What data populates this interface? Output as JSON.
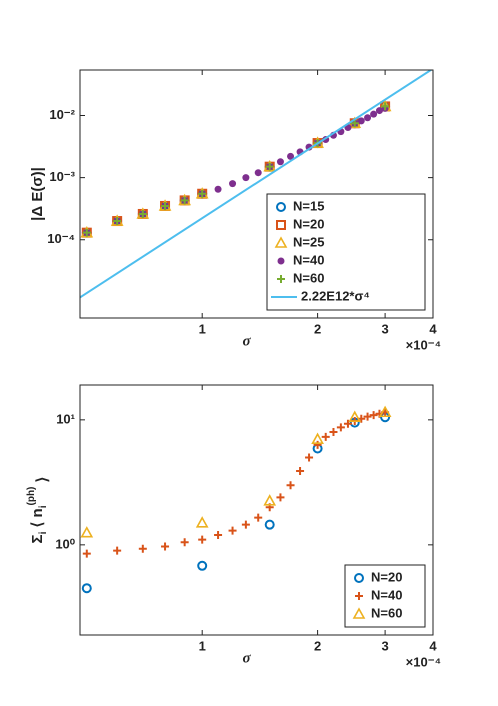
{
  "chart_data": [
    {
      "type": "scatter",
      "x_scale": "log",
      "y_scale": "log",
      "xlim": [
        0.48,
        4
      ],
      "xticks": [
        1,
        2,
        3,
        4
      ],
      "ylim": [
        5.5e-06,
        0.054
      ],
      "yticks": [
        {
          "value": 0.0001,
          "label": "10⁻⁴"
        },
        {
          "value": 0.001,
          "label": "10⁻³"
        },
        {
          "value": 0.01,
          "label": "10⁻²"
        }
      ],
      "x_label": "σ",
      "x_exponent_label": "×10⁻⁴",
      "y_label": "|Δ E(σ)|",
      "legend_loc": "southeast",
      "series": [
        {
          "name": "N=15",
          "marker": "circle",
          "color": "#0072BD",
          "x": [
            0.5,
            0.6,
            0.7,
            0.8,
            0.9,
            1,
            1.5,
            2,
            2.5,
            3
          ],
          "values": [
            0.00013,
            0.0002,
            0.00026,
            0.00035,
            0.00043,
            0.00055,
            0.0015,
            0.0036,
            0.0075,
            0.014
          ]
        },
        {
          "name": "N=20",
          "marker": "square",
          "color": "#D95319",
          "x": [
            0.5,
            0.6,
            0.7,
            0.8,
            0.9,
            1,
            1.5,
            2,
            2.5,
            3
          ],
          "values": [
            0.00013,
            0.0002,
            0.00026,
            0.00035,
            0.00043,
            0.00055,
            0.0015,
            0.0036,
            0.0075,
            0.014
          ]
        },
        {
          "name": "N=25",
          "marker": "triangle",
          "color": "#EDB120",
          "x": [
            0.5,
            0.6,
            0.7,
            0.8,
            0.9,
            1,
            1.5,
            2,
            2.5,
            3
          ],
          "values": [
            0.00013,
            0.0002,
            0.00026,
            0.00035,
            0.00043,
            0.00055,
            0.0015,
            0.0036,
            0.0075,
            0.014
          ]
        },
        {
          "name": "N=40",
          "marker": "dot",
          "color": "#7E2F8E",
          "x": [
            0.5,
            0.6,
            0.7,
            0.8,
            0.9,
            1,
            1.1,
            1.2,
            1.3,
            1.4,
            1.5,
            1.6,
            1.7,
            1.8,
            1.9,
            2,
            2.1,
            2.2,
            2.3,
            2.4,
            2.5,
            2.6,
            2.7,
            2.8,
            2.9,
            3
          ],
          "values": [
            0.00013,
            0.0002,
            0.00026,
            0.00035,
            0.00043,
            0.00055,
            0.00065,
            0.0008,
            0.001,
            0.0012,
            0.0015,
            0.0018,
            0.0022,
            0.0026,
            0.0031,
            0.0036,
            0.0041,
            0.0048,
            0.0055,
            0.0064,
            0.0075,
            0.0082,
            0.0092,
            0.0105,
            0.012,
            0.013
          ]
        },
        {
          "name": "N=60",
          "marker": "plus",
          "color": "#77AC30",
          "x": [
            0.5,
            0.6,
            0.7,
            0.8,
            0.9,
            1,
            1.5,
            2,
            2.5,
            3
          ],
          "values": [
            0.00013,
            0.0002,
            0.00026,
            0.00035,
            0.00043,
            0.00055,
            0.0015,
            0.0036,
            0.0075,
            0.014
          ]
        },
        {
          "name": "2.22E12*σ⁴",
          "marker": "line",
          "color": "#4DBEEE",
          "x": [
            0.48,
            4
          ],
          "values": [
            1.18e-05,
            0.0568
          ]
        }
      ]
    },
    {
      "type": "scatter",
      "x_scale": "log",
      "y_scale": "log",
      "xlim": [
        0.48,
        4
      ],
      "xticks": [
        1,
        2,
        3,
        4
      ],
      "ylim": [
        0.19,
        19
      ],
      "yticks": [
        {
          "value": 1,
          "label": "10⁰"
        },
        {
          "value": 10,
          "label": "10¹"
        }
      ],
      "x_label": "σ",
      "x_exponent_label": "×10⁻⁴",
      "y_label_parts": [
        "Σ",
        "i",
        " ⟨ n",
        "i",
        "(ph)",
        " ⟩"
      ],
      "legend_loc": "southeast",
      "series": [
        {
          "name": "N=20",
          "marker": "circle",
          "color": "#0072BD",
          "x": [
            0.5,
            1,
            1.5,
            2,
            2.5,
            3
          ],
          "values": [
            0.45,
            0.68,
            1.45,
            5.9,
            9.5,
            10.5
          ]
        },
        {
          "name": "N=40",
          "marker": "plus",
          "color": "#D95319",
          "x": [
            0.5,
            0.6,
            0.7,
            0.8,
            0.9,
            1,
            1.1,
            1.2,
            1.3,
            1.4,
            1.5,
            1.6,
            1.7,
            1.8,
            1.9,
            2,
            2.1,
            2.2,
            2.3,
            2.4,
            2.5,
            2.6,
            2.7,
            2.8,
            2.9,
            3
          ],
          "values": [
            0.85,
            0.9,
            0.93,
            0.97,
            1.05,
            1.1,
            1.2,
            1.3,
            1.45,
            1.65,
            2.0,
            2.4,
            3.0,
            3.9,
            5.0,
            6.3,
            7.3,
            8.0,
            8.7,
            9.3,
            9.8,
            10.2,
            10.6,
            10.9,
            11.2,
            11.5
          ]
        },
        {
          "name": "N=60",
          "marker": "triangle",
          "color": "#EDB120",
          "x": [
            0.5,
            1,
            1.5,
            2,
            2.5,
            3
          ],
          "values": [
            1.25,
            1.5,
            2.25,
            7.0,
            10.5,
            11.5
          ]
        }
      ]
    }
  ]
}
